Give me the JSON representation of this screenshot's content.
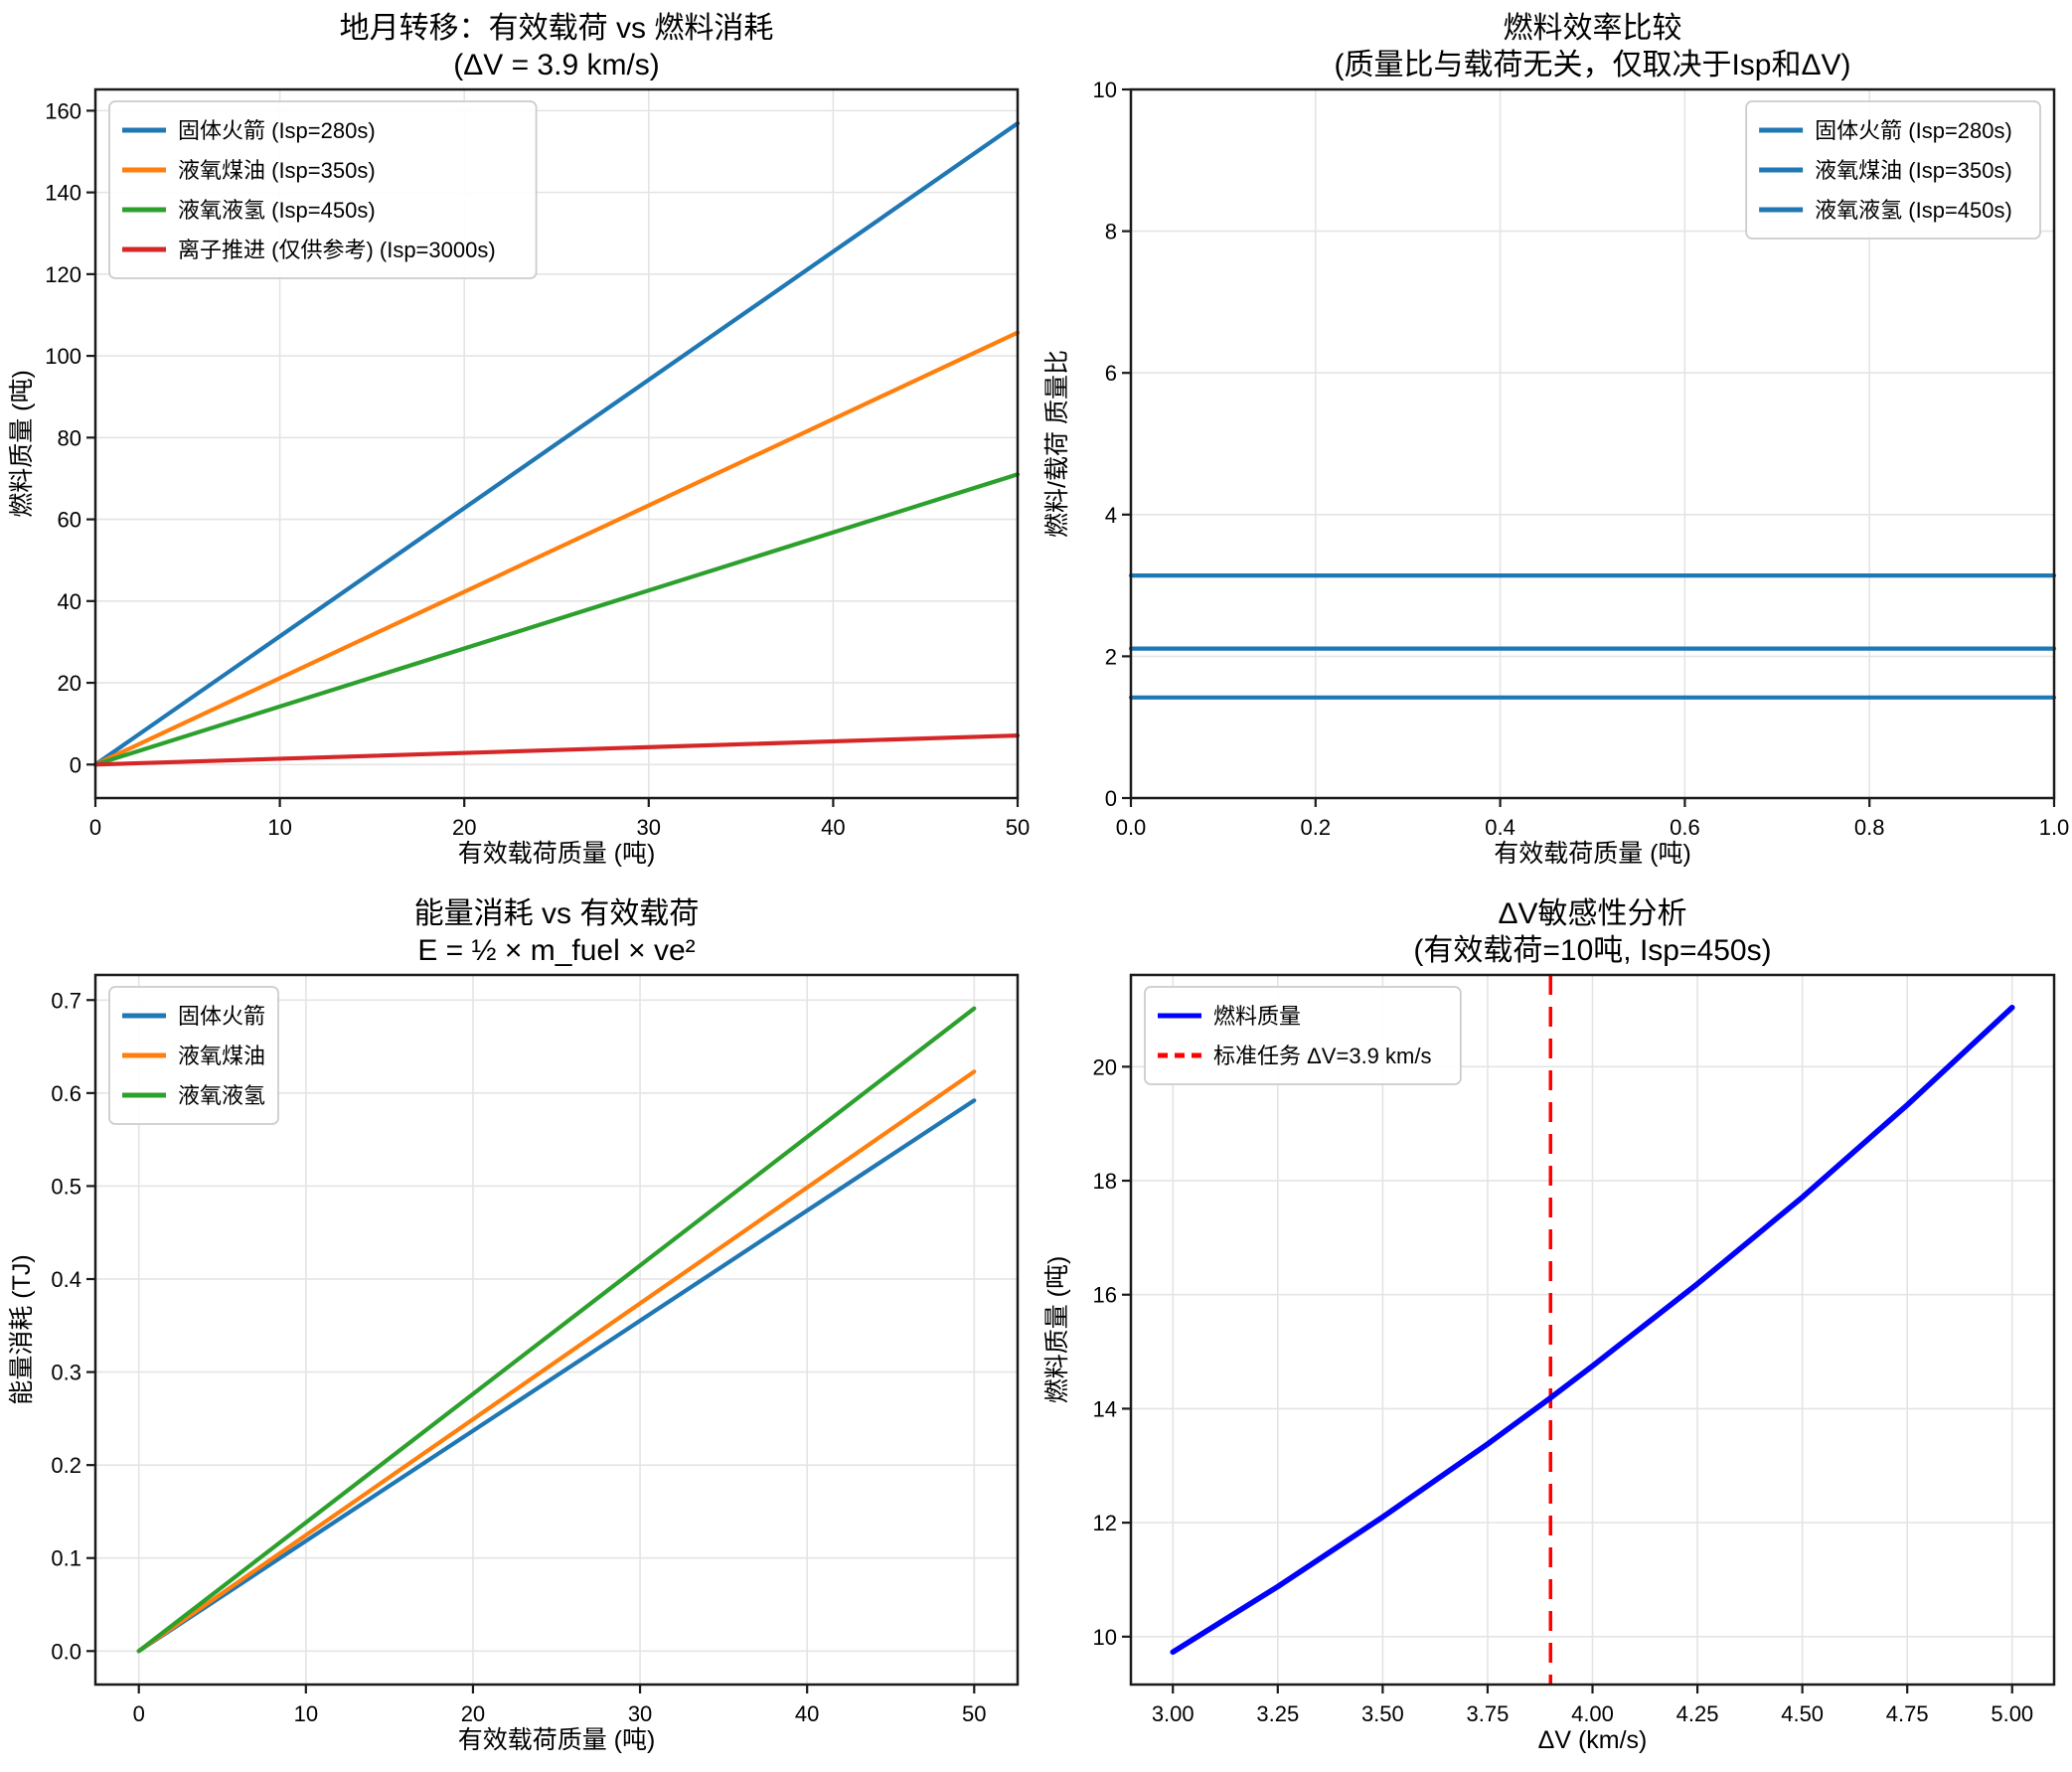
{
  "figure": {
    "background": "#ffffff",
    "style": {
      "grid_color": "#e4e4e4",
      "spine_color": "#1a1a1a",
      "tick_color": "#1a1a1a",
      "legend_border_color": "#cccccc",
      "text_color": "#000000"
    }
  },
  "chart_data": [
    {
      "id": "earth-moon-transfer",
      "type": "line",
      "title": "地月转移：有效载荷 vs 燃料消耗",
      "subtitle": "(ΔV = 3.9 km/s)",
      "xlabel": "有效载荷质量 (吨)",
      "ylabel": "燃料质量 (吨)",
      "xlim": [
        0,
        50
      ],
      "ylim": [
        -8.2,
        165.2
      ],
      "xticks": {
        "values": [
          0,
          10,
          20,
          30,
          40,
          50
        ],
        "labels": [
          "0",
          "10",
          "20",
          "30",
          "40",
          "50"
        ]
      },
      "yticks": {
        "values": [
          0,
          20,
          40,
          60,
          80,
          100,
          120,
          140,
          160
        ],
        "labels": [
          "0",
          "20",
          "40",
          "60",
          "80",
          "100",
          "120",
          "140",
          "160"
        ]
      },
      "grid": true,
      "legend_position": "upper-left",
      "series": [
        {
          "name": "固体火箭 (Isp=280s)",
          "color": "#1f77b4",
          "x": [
            0,
            50
          ],
          "y": [
            0,
            156.9
          ]
        },
        {
          "name": "液氧煤油 (Isp=350s)",
          "color": "#ff7f0e",
          "x": [
            0,
            50
          ],
          "y": [
            0,
            105.7
          ]
        },
        {
          "name": "液氧液氢 (Isp=450s)",
          "color": "#2ca02c",
          "x": [
            0,
            50
          ],
          "y": [
            0,
            71.0
          ]
        },
        {
          "name": "离子推进 (仅供参考) (Isp=3000s)",
          "color": "#d62728",
          "x": [
            0,
            50
          ],
          "y": [
            0,
            7.1
          ]
        }
      ]
    },
    {
      "id": "fuel-efficiency",
      "type": "line",
      "title": "燃料效率比较",
      "subtitle": "(质量比与载荷无关，仅取决于Isp和ΔV)",
      "xlabel": "有效载荷质量 (吨)",
      "ylabel": "燃料/载荷 质量比",
      "xlim": [
        0,
        1
      ],
      "ylim": [
        0,
        10
      ],
      "xticks": {
        "values": [
          0,
          0.2,
          0.4,
          0.6,
          0.8,
          1.0
        ],
        "labels": [
          "0.0",
          "0.2",
          "0.4",
          "0.6",
          "0.8",
          "1.0"
        ]
      },
      "yticks": {
        "values": [
          0,
          2,
          4,
          6,
          8,
          10
        ],
        "labels": [
          "0",
          "2",
          "4",
          "6",
          "8",
          "10"
        ]
      },
      "grid": true,
      "legend_position": "upper-right",
      "series": [
        {
          "name": "固体火箭 (Isp=280s)",
          "color": "#1f77b4",
          "x": [
            0,
            1
          ],
          "y": [
            3.14,
            3.14
          ]
        },
        {
          "name": "液氧煤油 (Isp=350s)",
          "color": "#1f77b4",
          "x": [
            0,
            1
          ],
          "y": [
            2.11,
            2.11
          ]
        },
        {
          "name": "液氧液氢 (Isp=450s)",
          "color": "#1f77b4",
          "x": [
            0,
            1
          ],
          "y": [
            1.42,
            1.42
          ]
        }
      ]
    },
    {
      "id": "energy-consumption",
      "type": "line",
      "title": "能量消耗 vs 有效载荷",
      "subtitle": "E = ½ × m_fuel × ve²",
      "xlabel": "有效载荷质量 (吨)",
      "ylabel": "能量消耗 (TJ)",
      "xlim": [
        -2.6,
        52.6
      ],
      "ylim": [
        -0.036,
        0.727
      ],
      "xticks": {
        "values": [
          0,
          10,
          20,
          30,
          40,
          50
        ],
        "labels": [
          "0",
          "10",
          "20",
          "30",
          "40",
          "50"
        ]
      },
      "yticks": {
        "values": [
          0,
          0.1,
          0.2,
          0.3,
          0.4,
          0.5,
          0.6,
          0.7
        ],
        "labels": [
          "0.0",
          "0.1",
          "0.2",
          "0.3",
          "0.4",
          "0.5",
          "0.6",
          "0.7"
        ]
      },
      "grid": true,
      "legend_position": "upper-left",
      "series": [
        {
          "name": "固体火箭",
          "color": "#1f77b4",
          "x": [
            0,
            50
          ],
          "y": [
            0,
            0.592
          ]
        },
        {
          "name": "液氧煤油",
          "color": "#ff7f0e",
          "x": [
            0,
            50
          ],
          "y": [
            0,
            0.623
          ]
        },
        {
          "name": "液氧液氢",
          "color": "#2ca02c",
          "x": [
            0,
            50
          ],
          "y": [
            0,
            0.691
          ]
        }
      ]
    },
    {
      "id": "delta-v-sensitivity",
      "type": "line",
      "title": "ΔV敏感性分析",
      "subtitle": "(有效载荷=10吨, Isp=450s)",
      "xlabel": "ΔV (km/s)",
      "ylabel": "燃料质量 (吨)",
      "xlim": [
        2.9,
        5.1
      ],
      "ylim": [
        9.16,
        21.61
      ],
      "xticks": {
        "values": [
          3.0,
          3.25,
          3.5,
          3.75,
          4.0,
          4.25,
          4.5,
          4.75,
          5.0
        ],
        "labels": [
          "3.00",
          "3.25",
          "3.50",
          "3.75",
          "4.00",
          "4.25",
          "4.50",
          "4.75",
          "5.00"
        ]
      },
      "yticks": {
        "values": [
          10,
          12,
          14,
          16,
          18,
          20
        ],
        "labels": [
          "10",
          "12",
          "14",
          "16",
          "18",
          "20"
        ]
      },
      "grid": true,
      "legend_position": "upper-left",
      "series": [
        {
          "name": "燃料质量",
          "color": "#0000ff",
          "width": 5.5,
          "x": [
            3.0,
            3.25,
            3.5,
            3.75,
            3.9,
            4.0,
            4.25,
            4.5,
            4.75,
            5.0
          ],
          "y": [
            9.73,
            10.88,
            12.1,
            13.38,
            14.19,
            14.75,
            16.19,
            17.71,
            19.33,
            21.04
          ]
        }
      ],
      "vlines": [
        {
          "x": 3.9,
          "label": "标准任务 ΔV=3.9 km/s",
          "color": "#ff0000",
          "dash": [
            20,
            12
          ]
        }
      ]
    }
  ]
}
